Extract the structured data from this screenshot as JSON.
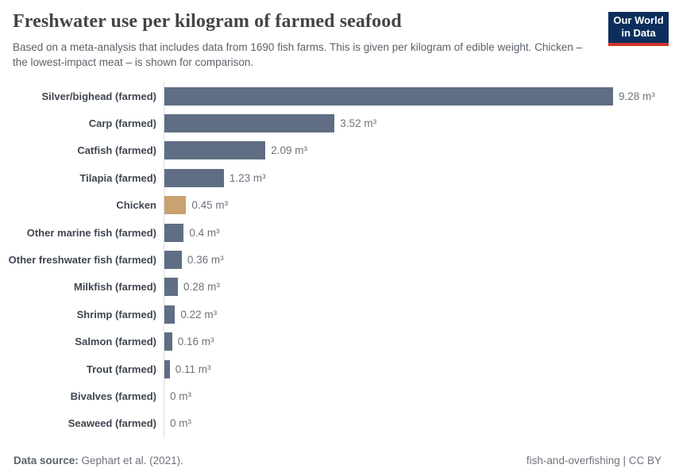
{
  "header": {
    "title": "Freshwater use per kilogram of farmed seafood",
    "subtitle": "Based on a meta-analysis that includes data from 1690 fish farms. This is given per kilogram of edible weight. Chicken – the lowest-impact meat – is shown for comparison."
  },
  "logo": {
    "line1": "Our World",
    "line2": "in Data"
  },
  "chart_data": {
    "type": "bar",
    "orientation": "horizontal",
    "unit": "m³",
    "xlim": [
      0,
      9.28
    ],
    "grid": false,
    "legend": "none",
    "categories": [
      "Silver/bighead (farmed)",
      "Carp (farmed)",
      "Catfish (farmed)",
      "Tilapia (farmed)",
      "Chicken",
      "Other marine fish (farmed)",
      "Other freshwater fish (farmed)",
      "Milkfish (farmed)",
      "Shrimp (farmed)",
      "Salmon (farmed)",
      "Trout (farmed)",
      "Bivalves (farmed)",
      "Seaweed (farmed)"
    ],
    "values": [
      9.28,
      3.52,
      2.09,
      1.23,
      0.45,
      0.4,
      0.36,
      0.28,
      0.22,
      0.16,
      0.11,
      0,
      0
    ],
    "value_labels": [
      "9.28 m³",
      "3.52 m³",
      "2.09 m³",
      "1.23 m³",
      "0.45 m³",
      "0.4 m³",
      "0.36 m³",
      "0.28 m³",
      "0.22 m³",
      "0.16 m³",
      "0.11 m³",
      "0 m³",
      "0 m³"
    ],
    "highlight": {
      "category": "Chicken",
      "color": "#c9a26f"
    },
    "bar_color": "#5f6e84"
  },
  "footer": {
    "datasource_label": "Data source:",
    "datasource_value": " Gephart et al. (2021).",
    "right_text": "fish-and-overfishing | CC BY"
  },
  "colors": {
    "bar": "#5f6e84",
    "highlight": "#c9a26f",
    "axis": "#d9dce1",
    "logo_navy": "#0d2e5c",
    "logo_red": "#d0342c"
  }
}
